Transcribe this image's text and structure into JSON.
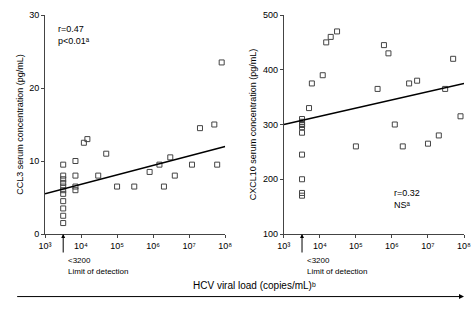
{
  "chart_data": [
    {
      "type": "scatter",
      "ylabel": "CCL3 serum concentration (pg/mL)",
      "xlabel": "HCV viral load (copies/mL)ᵇ",
      "log": "x",
      "grid": false,
      "xlim": [
        1000,
        100000000
      ],
      "xticks": [
        {
          "value": 1000,
          "label": "10³"
        },
        {
          "value": 10000,
          "label": "10⁴"
        },
        {
          "value": 100000,
          "label": "10⁵"
        },
        {
          "value": 1000000,
          "label": "10⁶"
        },
        {
          "value": 10000000,
          "label": "10⁷"
        },
        {
          "value": 100000000,
          "label": "10⁸"
        }
      ],
      "ylim": [
        0,
        30
      ],
      "yticks": [
        0,
        10,
        20,
        30
      ],
      "series": [
        {
          "type": "scatter",
          "marker": "square-open",
          "color": "#444444",
          "x": [
            3200,
            3200,
            3200,
            3200,
            3200,
            3200,
            3200,
            3200,
            3200,
            3200,
            3200,
            7000,
            7000,
            7000,
            7000,
            12000,
            15000,
            30000,
            50000,
            100000,
            300000,
            800000,
            1500000,
            2000000,
            3000000,
            4000000,
            12000000,
            20000000,
            50000000,
            60000000,
            80000000
          ],
          "values": [
            1.5,
            2.5,
            3.5,
            4.5,
            5.5,
            6.0,
            6.5,
            7.0,
            7.5,
            8.0,
            9.5,
            6.0,
            6.5,
            8.0,
            10.0,
            12.5,
            13.0,
            8.0,
            11.0,
            6.5,
            6.5,
            8.5,
            9.5,
            6.5,
            10.5,
            8.0,
            9.5,
            14.5,
            15.0,
            9.5,
            23.5
          ]
        },
        {
          "type": "line",
          "color": "#000000",
          "x": [
            1000,
            100000000
          ],
          "values": [
            5.5,
            12.0
          ]
        }
      ],
      "annotations": [
        {
          "text": "r=0.47\np<0.01ᵃ"
        },
        {
          "text": "<3200",
          "x": 3200
        },
        {
          "text": "Limit of detection",
          "x": 3200
        }
      ]
    },
    {
      "type": "scatter",
      "ylabel": "CXCL10 serum concentration (pg/mL)",
      "log": "x",
      "grid": false,
      "xlim": [
        1000,
        100000000
      ],
      "xticks": [
        {
          "value": 1000,
          "label": "10³"
        },
        {
          "value": 10000,
          "label": "10⁴"
        },
        {
          "value": 100000,
          "label": "10⁵"
        },
        {
          "value": 1000000,
          "label": "10⁶"
        },
        {
          "value": 10000000,
          "label": "10⁷"
        },
        {
          "value": 100000000,
          "label": "10⁸"
        }
      ],
      "ylim": [
        100,
        500
      ],
      "yticks": [
        100,
        200,
        300,
        400,
        500
      ],
      "series": [
        {
          "type": "scatter",
          "marker": "square-open",
          "color": "#444444",
          "x": [
            3200,
            3200,
            3200,
            3200,
            3200,
            3200,
            3200,
            3200,
            3200,
            3200,
            3200,
            3200,
            3200,
            5000,
            6000,
            12000,
            15000,
            20000,
            30000,
            100000,
            400000,
            600000,
            800000,
            1200000,
            2000000,
            3000000,
            5000000,
            10000000,
            20000000,
            30000000,
            50000000,
            80000000
          ],
          "values": [
            170,
            175,
            200,
            245,
            285,
            295,
            300,
            300,
            300,
            300,
            300,
            305,
            310,
            330,
            375,
            390,
            450,
            460,
            470,
            260,
            365,
            445,
            430,
            300,
            260,
            375,
            380,
            265,
            280,
            365,
            420,
            315
          ]
        },
        {
          "type": "line",
          "color": "#000000",
          "x": [
            1000,
            100000000
          ],
          "values": [
            300,
            375
          ]
        }
      ],
      "annotations": [
        {
          "text": "r=0.32\nNSᵃ"
        },
        {
          "text": "<3200",
          "x": 3200
        },
        {
          "text": "Limit of detection",
          "x": 3200
        }
      ]
    }
  ]
}
